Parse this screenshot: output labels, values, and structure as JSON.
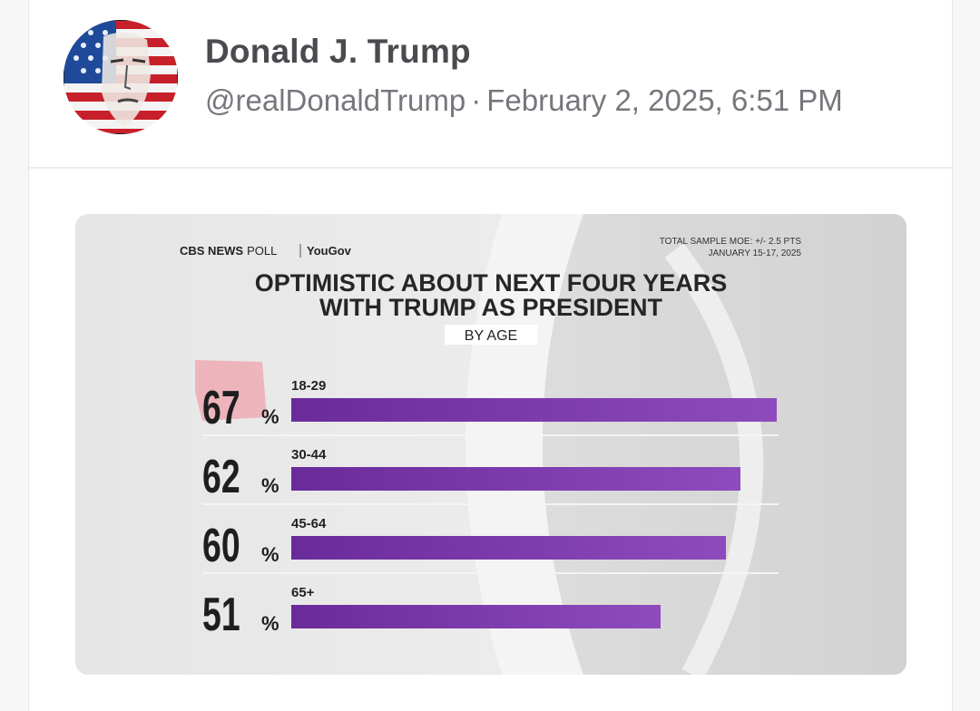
{
  "post": {
    "author": {
      "display_name": "Donald J. Trump",
      "handle": "@realDonaldTrump",
      "avatar_icon": "flag-portrait-avatar"
    },
    "timestamp": "February 2, 2025, 6:51 PM",
    "separator": "·"
  },
  "poll_graphic": {
    "source_brand": "CBS NEWS",
    "source_poll": "POLL",
    "partner": "YouGov",
    "moe": "TOTAL SAMPLE MOE: +/- 2.5 PTS",
    "dates": "JANUARY 15-17, 2025",
    "title_line1": "OPTIMISTIC ABOUT NEXT FOUR YEARS",
    "title_line2": "WITH TRUMP AS PRESIDENT",
    "subtitle": "BY AGE",
    "bar_color": "#7b3fa8",
    "highlight_color": "#f0a0a8"
  },
  "chart_data": {
    "type": "bar",
    "orientation": "horizontal",
    "title": "OPTIMISTIC ABOUT NEXT FOUR YEARS WITH TRUMP AS PRESIDENT",
    "subtitle": "BY AGE",
    "categories": [
      "18-29",
      "30-44",
      "45-64",
      "65+"
    ],
    "values": [
      67,
      62,
      60,
      51
    ],
    "value_labels": [
      "67",
      "62",
      "60",
      "51"
    ],
    "unit": "%",
    "xlim": [
      0,
      67
    ],
    "xlabel": "",
    "ylabel": ""
  }
}
